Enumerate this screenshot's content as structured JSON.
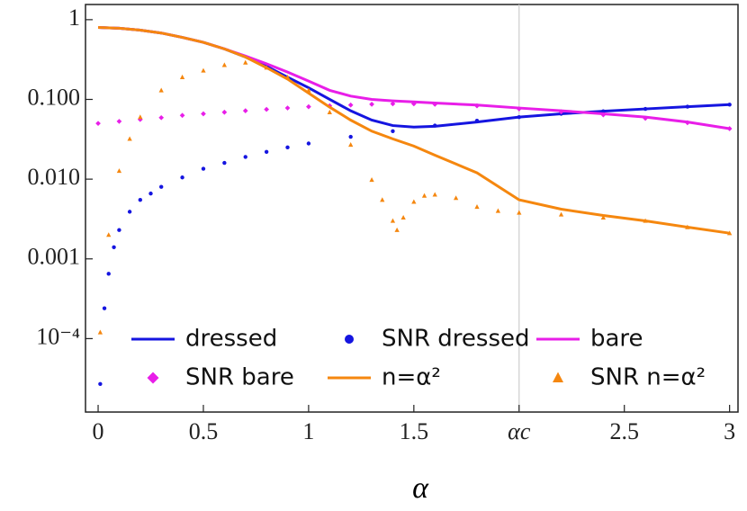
{
  "chart_data": {
    "type": "line",
    "xlabel": "α",
    "ylog": true,
    "xlim": [
      -0.06,
      3.04
    ],
    "ylim": [
      1.2e-05,
      1.55
    ],
    "xticks": [
      0,
      0.5,
      1,
      1.5,
      {
        "value": 2,
        "label": "αc"
      },
      2.5,
      3
    ],
    "yticks": [
      {
        "value": 1,
        "label": "1"
      },
      {
        "value": 0.1,
        "label": "0.100"
      },
      {
        "value": 0.01,
        "label": "0.010"
      },
      {
        "value": 0.001,
        "label": "0.001"
      },
      {
        "value": 0.0001,
        "label": "10⁻⁴"
      }
    ],
    "vline": 2,
    "vline_color": "#cccccc",
    "series": [
      {
        "name": "dressed",
        "color": "#1515e0",
        "mode": "lines",
        "x": [
          0,
          0.1,
          0.2,
          0.3,
          0.4,
          0.5,
          0.6,
          0.7,
          0.8,
          0.9,
          1.0,
          1.1,
          1.2,
          1.3,
          1.4,
          1.5,
          1.6,
          1.8,
          2.0,
          2.2,
          2.4,
          2.6,
          2.8,
          3.0
        ],
        "values": [
          0.8,
          0.78,
          0.74,
          0.68,
          0.6,
          0.52,
          0.43,
          0.34,
          0.26,
          0.19,
          0.14,
          0.1,
          0.072,
          0.055,
          0.047,
          0.045,
          0.046,
          0.052,
          0.06,
          0.066,
          0.071,
          0.076,
          0.081,
          0.086
        ]
      },
      {
        "name": "SNR dressed",
        "color": "#1515e0",
        "mode": "markers",
        "marker": "circle",
        "x": [
          0.01,
          0.03,
          0.05,
          0.075,
          0.1,
          0.15,
          0.2,
          0.25,
          0.3,
          0.4,
          0.5,
          0.6,
          0.7,
          0.8,
          0.9,
          1,
          1.2,
          1.4,
          1.6,
          1.8,
          2,
          2.2,
          2.4,
          2.6,
          2.8,
          3
        ],
        "values": [
          2.7e-05,
          0.00024,
          0.00065,
          0.0014,
          0.0023,
          0.0039,
          0.0055,
          0.0066,
          0.008,
          0.0105,
          0.0135,
          0.016,
          0.019,
          0.022,
          0.025,
          0.028,
          0.034,
          0.04,
          0.047,
          0.054,
          0.06,
          0.066,
          0.071,
          0.076,
          0.081,
          0.086
        ]
      },
      {
        "name": "bare",
        "color": "#e81ee8",
        "mode": "lines",
        "x": [
          0,
          0.1,
          0.2,
          0.3,
          0.4,
          0.5,
          0.6,
          0.7,
          0.8,
          0.9,
          1.0,
          1.1,
          1.2,
          1.3,
          1.4,
          1.5,
          1.6,
          1.8,
          2.0,
          2.2,
          2.4,
          2.6,
          2.8,
          3.0
        ],
        "values": [
          0.8,
          0.78,
          0.74,
          0.68,
          0.6,
          0.52,
          0.43,
          0.35,
          0.28,
          0.22,
          0.17,
          0.13,
          0.11,
          0.1,
          0.096,
          0.093,
          0.09,
          0.085,
          0.078,
          0.072,
          0.066,
          0.06,
          0.052,
          0.043
        ]
      },
      {
        "name": "SNR bare",
        "color": "#e81ee8",
        "mode": "markers",
        "marker": "diamond",
        "x": [
          0,
          0.1,
          0.2,
          0.3,
          0.4,
          0.5,
          0.6,
          0.7,
          0.8,
          0.9,
          1.0,
          1.1,
          1.2,
          1.3,
          1.4,
          1.5,
          1.6,
          1.8,
          2.0,
          2.2,
          2.4,
          2.6,
          2.8,
          3.0
        ],
        "values": [
          0.05,
          0.053,
          0.056,
          0.059,
          0.063,
          0.066,
          0.069,
          0.072,
          0.075,
          0.078,
          0.081,
          0.083,
          0.085,
          0.087,
          0.088,
          0.088,
          0.087,
          0.083,
          0.076,
          0.07,
          0.064,
          0.058,
          0.051,
          0.043
        ]
      },
      {
        "name": "n=α²",
        "color": "#f5870f",
        "mode": "lines",
        "x": [
          0,
          0.1,
          0.2,
          0.3,
          0.4,
          0.5,
          0.6,
          0.7,
          0.8,
          0.9,
          1.0,
          1.1,
          1.2,
          1.3,
          1.4,
          1.5,
          1.6,
          1.8,
          2.0,
          2.2,
          2.4,
          2.6,
          2.8,
          3.0
        ],
        "values": [
          0.8,
          0.78,
          0.74,
          0.68,
          0.6,
          0.52,
          0.43,
          0.34,
          0.25,
          0.18,
          0.12,
          0.08,
          0.055,
          0.04,
          0.032,
          0.026,
          0.02,
          0.012,
          0.0055,
          0.0042,
          0.0035,
          0.003,
          0.0025,
          0.0021
        ]
      },
      {
        "name": "SNR n=α²",
        "color": "#f5870f",
        "mode": "markers",
        "marker": "triangle",
        "x": [
          0.01,
          0.05,
          0.1,
          0.15,
          0.2,
          0.3,
          0.4,
          0.5,
          0.6,
          0.7,
          0.8,
          0.9,
          1.0,
          1.1,
          1.2,
          1.3,
          1.35,
          1.4,
          1.42,
          1.45,
          1.5,
          1.55,
          1.6,
          1.7,
          1.8,
          1.9,
          2.0,
          2.2,
          2.4,
          2.6,
          2.8,
          3.0
        ],
        "values": [
          0.00012,
          0.002,
          0.0127,
          0.032,
          0.06,
          0.13,
          0.19,
          0.23,
          0.27,
          0.29,
          0.25,
          0.19,
          0.13,
          0.069,
          0.027,
          0.0098,
          0.0055,
          0.003,
          0.0023,
          0.0033,
          0.0052,
          0.0062,
          0.0064,
          0.0058,
          0.0045,
          0.004,
          0.0038,
          0.0036,
          0.0033,
          0.003,
          0.0025,
          0.0021
        ]
      }
    ]
  }
}
